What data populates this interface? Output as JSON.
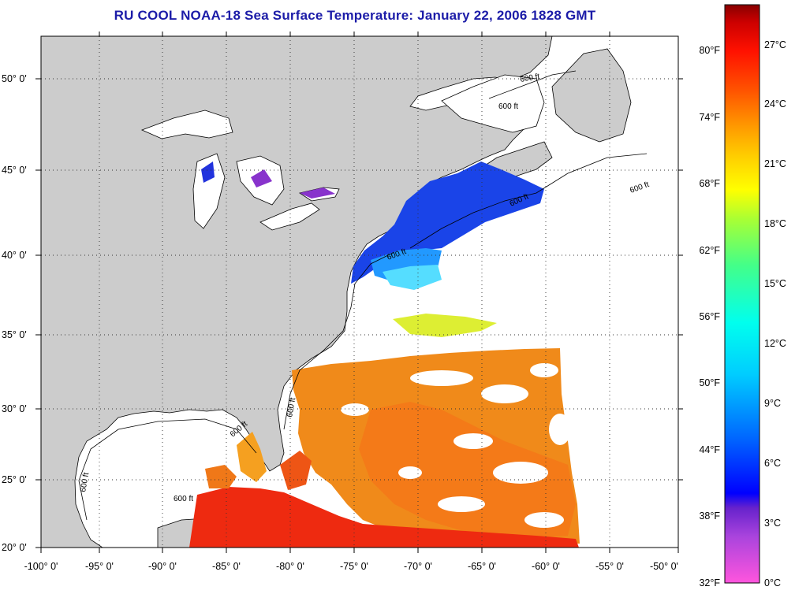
{
  "title": "RU COOL  NOAA-18  Sea Surface Temperature:  January 22, 2006 1828 GMT",
  "map": {
    "lon_labels": [
      "-100° 0'",
      "-95° 0'",
      "-90° 0'",
      "-85° 0'",
      "-80° 0'",
      "-75° 0'",
      "-70° 0'",
      "-65° 0'",
      "-60° 0'",
      "-55° 0'",
      "-50° 0'"
    ],
    "lat_labels": [
      "50° 0'",
      "45° 0'",
      "40° 0'",
      "35° 0'",
      "30° 0'",
      "25° 0'",
      "20° 0'"
    ],
    "contour_labels": [
      "600 ft",
      "600 ft",
      "600 ft",
      "600 ft",
      "600 ft",
      "600 ft",
      "600 ft",
      "600 ft",
      "600 ft"
    ],
    "colors": {
      "land": "#cccccc",
      "ocean": "#ffffff",
      "graticule": "#333333"
    }
  },
  "colorbar": {
    "fahrenheit_labels": [
      "80°F",
      "74°F",
      "68°F",
      "62°F",
      "56°F",
      "50°F",
      "44°F",
      "38°F",
      "32°F"
    ],
    "celsius_labels": [
      "27°C",
      "24°C",
      "21°C",
      "18°C",
      "15°C",
      "12°C",
      "9°C",
      "6°C",
      "3°C",
      "0°C"
    ],
    "range_celsius": [
      0,
      28.5
    ],
    "gradient": [
      "#ff55dd",
      "#aa44dd",
      "#6622cc",
      "#0000ff",
      "#0066ff",
      "#00ccff",
      "#00ffee",
      "#44ff88",
      "#aaff33",
      "#ffff00",
      "#ffcc00",
      "#ff9900",
      "#ff5500",
      "#ff1100",
      "#cc0000",
      "#880000"
    ]
  }
}
